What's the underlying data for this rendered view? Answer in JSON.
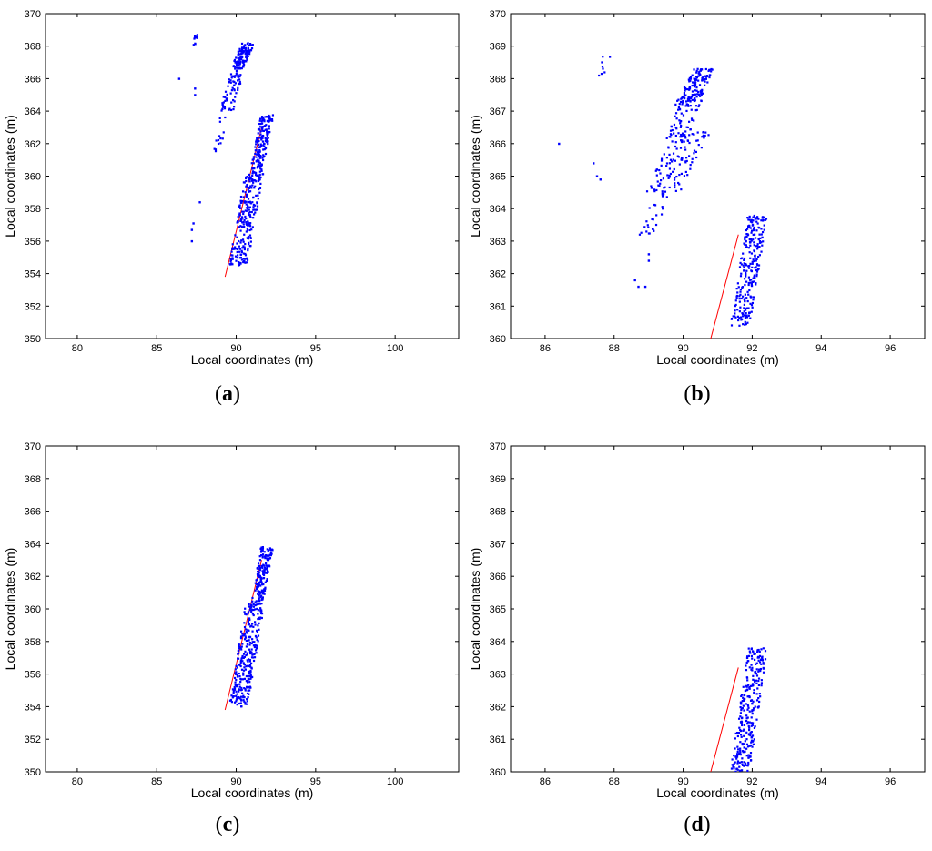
{
  "colors": {
    "points": "#0000ff",
    "line": "#ff0000",
    "axes": "#000000"
  },
  "chart_data": [
    {
      "type": "scatter",
      "panel": "a",
      "caption_open": "(",
      "caption_letter": "a",
      "caption_close": ")",
      "xlabel": "Local coordinates (m)",
      "ylabel": "Local coordinates (m)",
      "xlim": [
        78,
        104
      ],
      "ylim": [
        350,
        370
      ],
      "xticks": [
        80,
        85,
        90,
        95,
        100
      ],
      "yticks": [
        350,
        352,
        354,
        356,
        358,
        360,
        362,
        364,
        366,
        368,
        370
      ],
      "line": {
        "x": [
          89.3,
          91.6
        ],
        "y": [
          353.8,
          363.0
        ]
      },
      "clusters": [
        {
          "x": [
            87.2,
            87.6
          ],
          "y": [
            368.0,
            368.8
          ],
          "n": 12
        },
        {
          "x": [
            89.7,
            91.1
          ],
          "y": [
            366.6,
            368.2
          ],
          "n": 110
        },
        {
          "x": [
            89.0,
            90.5
          ],
          "y": [
            364.0,
            366.7
          ],
          "n": 70
        },
        {
          "x": [
            88.6,
            89.4
          ],
          "y": [
            361.5,
            363.8
          ],
          "n": 14
        },
        {
          "x": [
            90.9,
            92.3
          ],
          "y": [
            360.2,
            363.8
          ],
          "n": 170
        },
        {
          "x": [
            89.6,
            91.7
          ],
          "y": [
            354.5,
            360.3
          ],
          "n": 260
        }
      ],
      "points": [
        [
          86.4,
          366.0
        ],
        [
          87.4,
          365.4
        ],
        [
          87.4,
          365.0
        ],
        [
          87.7,
          358.4
        ],
        [
          87.3,
          357.1
        ],
        [
          87.2,
          356.7
        ],
        [
          87.2,
          356.0
        ]
      ]
    },
    {
      "type": "scatter",
      "panel": "b",
      "caption_open": "(",
      "caption_letter": "b",
      "caption_close": ")",
      "xlabel": "Local coordinates (m)",
      "ylabel": "Local coordinates (m)",
      "xlim": [
        85,
        97
      ],
      "ylim": [
        360,
        370
      ],
      "xticks": [
        86,
        88,
        90,
        92,
        94,
        96
      ],
      "yticks": [
        360,
        361,
        362,
        363,
        364,
        365,
        366,
        367,
        368,
        369,
        370
      ],
      "line": {
        "x": [
          90.8,
          91.6
        ],
        "y": [
          360.0,
          363.2
        ]
      },
      "clusters": [
        {
          "x": [
            87.5,
            87.9
          ],
          "y": [
            368.0,
            368.8
          ],
          "n": 8
        },
        {
          "x": [
            89.8,
            90.9
          ],
          "y": [
            367.2,
            368.3
          ],
          "n": 120
        },
        {
          "x": [
            89.5,
            90.6
          ],
          "y": [
            366.0,
            367.6
          ],
          "n": 80
        },
        {
          "x": [
            88.9,
            90.8
          ],
          "y": [
            364.5,
            366.4
          ],
          "n": 110
        },
        {
          "x": [
            88.7,
            89.6
          ],
          "y": [
            363.2,
            364.6
          ],
          "n": 30
        },
        {
          "x": [
            91.4,
            92.4
          ],
          "y": [
            360.4,
            363.8
          ],
          "n": 260
        }
      ],
      "points": [
        [
          86.4,
          366.0
        ],
        [
          87.4,
          365.4
        ],
        [
          87.5,
          365.0
        ],
        [
          87.6,
          364.9
        ],
        [
          88.6,
          361.8
        ],
        [
          88.7,
          361.6
        ],
        [
          88.9,
          361.6
        ],
        [
          89.0,
          362.6
        ],
        [
          89.0,
          362.4
        ]
      ]
    },
    {
      "type": "scatter",
      "panel": "c",
      "caption_open": "(",
      "caption_letter": "c",
      "caption_close": ")",
      "xlabel": "Local coordinates (m)",
      "ylabel": "Local coordinates (m)",
      "xlim": [
        78,
        104
      ],
      "ylim": [
        350,
        370
      ],
      "xticks": [
        80,
        85,
        90,
        95,
        100
      ],
      "yticks": [
        350,
        352,
        354,
        356,
        358,
        360,
        362,
        364,
        366,
        368,
        370
      ],
      "line": {
        "x": [
          89.3,
          91.6
        ],
        "y": [
          353.8,
          363.0
        ]
      },
      "clusters": [
        {
          "x": [
            90.9,
            92.3
          ],
          "y": [
            360.2,
            363.8
          ],
          "n": 170
        },
        {
          "x": [
            89.6,
            91.7
          ],
          "y": [
            354.0,
            360.3
          ],
          "n": 280
        }
      ],
      "points": []
    },
    {
      "type": "scatter",
      "panel": "d",
      "caption_open": "(",
      "caption_letter": "d",
      "caption_close": ")",
      "xlabel": "Local coordinates (m)",
      "ylabel": "Local coordinates (m)",
      "xlim": [
        85,
        97
      ],
      "ylim": [
        360,
        370
      ],
      "xticks": [
        86,
        88,
        90,
        92,
        94,
        96
      ],
      "yticks": [
        360,
        361,
        362,
        363,
        364,
        365,
        366,
        367,
        368,
        369,
        370
      ],
      "line": {
        "x": [
          90.8,
          91.6
        ],
        "y": [
          360.0,
          363.2
        ]
      },
      "clusters": [
        {
          "x": [
            91.4,
            92.4
          ],
          "y": [
            360.0,
            363.8
          ],
          "n": 280
        }
      ],
      "points": []
    }
  ]
}
